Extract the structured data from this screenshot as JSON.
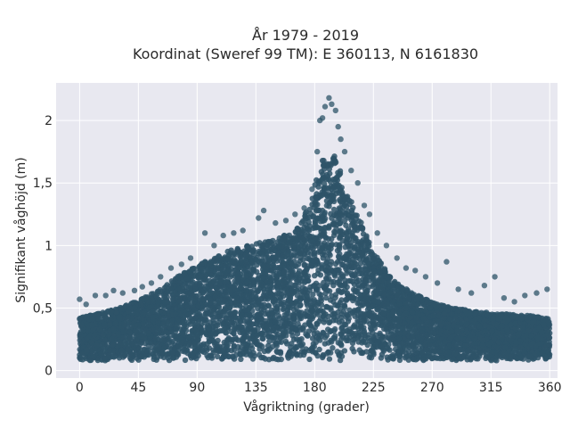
{
  "chart_data": {
    "type": "scatter",
    "title_line1": "År 1979 - 2019",
    "title_line2": "Koordinat (Sweref 99 TM): E 360113, N 6161830",
    "xlabel": "Vågriktning (grader)",
    "ylabel": "Signifikant våghöjd (m)",
    "xlim": [
      -18,
      366
    ],
    "ylim": [
      -0.06,
      2.3
    ],
    "x_ticks": [
      0,
      45,
      90,
      135,
      180,
      225,
      270,
      315,
      360
    ],
    "x_tick_labels": [
      "0",
      "45",
      "90",
      "135",
      "180",
      "225",
      "270",
      "315",
      "360"
    ],
    "y_ticks": [
      0,
      0.5,
      1,
      1.5,
      2
    ],
    "y_tick_labels": [
      "0",
      "0,5",
      "1",
      "1,5",
      "2"
    ],
    "grid": true,
    "marker_color": "#2e5468",
    "plot_background": "#e8e8f0",
    "envelope": {
      "direction": [
        0,
        30,
        45,
        60,
        75,
        90,
        105,
        120,
        135,
        150,
        165,
        175,
        185,
        195,
        205,
        215,
        225,
        240,
        255,
        270,
        285,
        300,
        315,
        330,
        345,
        360
      ],
      "upper_height": [
        0.42,
        0.5,
        0.56,
        0.64,
        0.75,
        0.84,
        0.92,
        0.98,
        1.02,
        1.05,
        1.12,
        1.3,
        1.68,
        1.72,
        1.45,
        1.2,
        0.95,
        0.72,
        0.62,
        0.55,
        0.5,
        0.48,
        0.46,
        0.45,
        0.44,
        0.42
      ],
      "lower_height": 0.08
    },
    "outlier_points": [
      {
        "x": 0,
        "y": 0.57
      },
      {
        "x": 5,
        "y": 0.53
      },
      {
        "x": 12,
        "y": 0.6
      },
      {
        "x": 20,
        "y": 0.6
      },
      {
        "x": 26,
        "y": 0.64
      },
      {
        "x": 33,
        "y": 0.62
      },
      {
        "x": 42,
        "y": 0.64
      },
      {
        "x": 48,
        "y": 0.67
      },
      {
        "x": 55,
        "y": 0.7
      },
      {
        "x": 62,
        "y": 0.75
      },
      {
        "x": 70,
        "y": 0.82
      },
      {
        "x": 78,
        "y": 0.85
      },
      {
        "x": 85,
        "y": 0.9
      },
      {
        "x": 96,
        "y": 1.1
      },
      {
        "x": 103,
        "y": 1.0
      },
      {
        "x": 110,
        "y": 1.08
      },
      {
        "x": 118,
        "y": 1.1
      },
      {
        "x": 125,
        "y": 1.12
      },
      {
        "x": 137,
        "y": 1.22
      },
      {
        "x": 141,
        "y": 1.28
      },
      {
        "x": 150,
        "y": 1.18
      },
      {
        "x": 158,
        "y": 1.2
      },
      {
        "x": 165,
        "y": 1.25
      },
      {
        "x": 172,
        "y": 1.3
      },
      {
        "x": 178,
        "y": 1.45
      },
      {
        "x": 182,
        "y": 1.75
      },
      {
        "x": 184,
        "y": 2.0
      },
      {
        "x": 186,
        "y": 2.02
      },
      {
        "x": 188,
        "y": 2.11
      },
      {
        "x": 191,
        "y": 2.18
      },
      {
        "x": 193,
        "y": 2.13
      },
      {
        "x": 196,
        "y": 2.08
      },
      {
        "x": 198,
        "y": 1.95
      },
      {
        "x": 200,
        "y": 1.85
      },
      {
        "x": 203,
        "y": 1.75
      },
      {
        "x": 208,
        "y": 1.6
      },
      {
        "x": 213,
        "y": 1.5
      },
      {
        "x": 218,
        "y": 1.32
      },
      {
        "x": 222,
        "y": 1.25
      },
      {
        "x": 228,
        "y": 1.1
      },
      {
        "x": 235,
        "y": 1.0
      },
      {
        "x": 243,
        "y": 0.9
      },
      {
        "x": 250,
        "y": 0.82
      },
      {
        "x": 257,
        "y": 0.8
      },
      {
        "x": 265,
        "y": 0.75
      },
      {
        "x": 274,
        "y": 0.7
      },
      {
        "x": 281,
        "y": 0.87
      },
      {
        "x": 290,
        "y": 0.65
      },
      {
        "x": 300,
        "y": 0.62
      },
      {
        "x": 310,
        "y": 0.68
      },
      {
        "x": 318,
        "y": 0.75
      },
      {
        "x": 325,
        "y": 0.58
      },
      {
        "x": 333,
        "y": 0.55
      },
      {
        "x": 341,
        "y": 0.6
      },
      {
        "x": 350,
        "y": 0.62
      },
      {
        "x": 358,
        "y": 0.65
      }
    ]
  }
}
